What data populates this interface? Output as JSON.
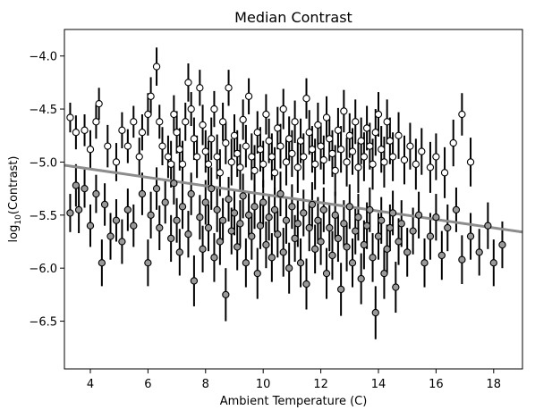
{
  "chart_data": {
    "type": "scatter",
    "title": "Median Contrast",
    "xlabel": "Ambient Temperature (C)",
    "ylabel_prefix": "log",
    "ylabel_sub": "10",
    "ylabel_suffix": "(Contrast)",
    "xlim": [
      3.1,
      19.0
    ],
    "ylim": [
      -6.95,
      -3.75
    ],
    "x_ticks": [
      {
        "value": 4,
        "label": "4"
      },
      {
        "value": 6,
        "label": "6"
      },
      {
        "value": 8,
        "label": "8"
      },
      {
        "value": 10,
        "label": "10"
      },
      {
        "value": 12,
        "label": "12"
      },
      {
        "value": 14,
        "label": "14"
      },
      {
        "value": 16,
        "label": "16"
      },
      {
        "value": 18,
        "label": "18"
      }
    ],
    "y_ticks": [
      {
        "value": -4.0,
        "label": "−4.0"
      },
      {
        "value": -4.5,
        "label": "−4.5"
      },
      {
        "value": -5.0,
        "label": "−5.0"
      },
      {
        "value": -5.5,
        "label": "−5.5"
      },
      {
        "value": -6.0,
        "label": "−6.0"
      },
      {
        "value": -6.5,
        "label": "−6.5"
      }
    ],
    "grid": false,
    "legend": "none",
    "fit_line": {
      "x": [
        3.1,
        19.0
      ],
      "y": [
        -5.03,
        -5.66
      ],
      "color": "#8c8c8c"
    },
    "marker_colors": {
      "light": "#ffffff",
      "dark": "#9a9a9a",
      "edge": "#000000",
      "errorbar": "#000000"
    },
    "series": [
      {
        "marker": "white-filled",
        "points": [
          [
            3.3,
            -4.58,
            0.14
          ],
          [
            3.5,
            -4.72,
            0.16
          ],
          [
            3.8,
            -4.7,
            0.15
          ],
          [
            4.0,
            -4.88,
            0.18
          ],
          [
            4.2,
            -4.62,
            0.16
          ],
          [
            4.3,
            -4.45,
            0.15
          ],
          [
            4.6,
            -4.85,
            0.2
          ],
          [
            4.9,
            -5.0,
            0.18
          ],
          [
            5.1,
            -4.7,
            0.17
          ],
          [
            5.3,
            -4.85,
            0.16
          ],
          [
            5.5,
            -4.62,
            0.15
          ],
          [
            5.7,
            -4.95,
            0.18
          ],
          [
            5.8,
            -4.72,
            0.17
          ],
          [
            6.0,
            -4.55,
            0.2
          ],
          [
            6.1,
            -4.38,
            0.18
          ],
          [
            6.3,
            -4.1,
            0.18
          ],
          [
            6.4,
            -4.62,
            0.16
          ],
          [
            6.5,
            -4.85,
            0.18
          ],
          [
            6.7,
            -4.95,
            0.2
          ],
          [
            6.8,
            -5.02,
            0.22
          ],
          [
            6.9,
            -4.55,
            0.18
          ],
          [
            7.0,
            -4.72,
            0.2
          ],
          [
            7.1,
            -4.88,
            0.2
          ],
          [
            7.2,
            -5.02,
            0.22
          ],
          [
            7.3,
            -4.62,
            0.18
          ],
          [
            7.4,
            -4.25,
            0.18
          ],
          [
            7.5,
            -4.5,
            0.16
          ],
          [
            7.6,
            -4.78,
            0.2
          ],
          [
            7.7,
            -4.95,
            0.2
          ],
          [
            7.8,
            -4.3,
            0.17
          ],
          [
            7.9,
            -4.65,
            0.19
          ],
          [
            8.0,
            -4.9,
            0.2
          ],
          [
            8.1,
            -5.02,
            0.22
          ],
          [
            8.2,
            -4.78,
            0.2
          ],
          [
            8.3,
            -4.5,
            0.17
          ],
          [
            8.4,
            -4.95,
            0.21
          ],
          [
            8.5,
            -5.1,
            0.22
          ],
          [
            8.6,
            -4.62,
            0.18
          ],
          [
            8.7,
            -4.82,
            0.2
          ],
          [
            8.8,
            -4.3,
            0.17
          ],
          [
            8.9,
            -5.0,
            0.22
          ],
          [
            9.0,
            -4.75,
            0.2
          ],
          [
            9.1,
            -4.92,
            0.22
          ],
          [
            9.2,
            -5.05,
            0.22
          ],
          [
            9.3,
            -4.6,
            0.19
          ],
          [
            9.4,
            -4.85,
            0.2
          ],
          [
            9.5,
            -4.38,
            0.17
          ],
          [
            9.6,
            -4.95,
            0.22
          ],
          [
            9.7,
            -5.08,
            0.24
          ],
          [
            9.8,
            -4.72,
            0.2
          ],
          [
            9.9,
            -4.88,
            0.21
          ],
          [
            10.0,
            -5.02,
            0.22
          ],
          [
            10.1,
            -4.55,
            0.19
          ],
          [
            10.2,
            -4.8,
            0.21
          ],
          [
            10.3,
            -4.95,
            0.22
          ],
          [
            10.4,
            -5.1,
            0.24
          ],
          [
            10.5,
            -4.68,
            0.2
          ],
          [
            10.6,
            -4.85,
            0.21
          ],
          [
            10.7,
            -4.5,
            0.19
          ],
          [
            10.8,
            -5.0,
            0.22
          ],
          [
            10.9,
            -4.78,
            0.21
          ],
          [
            11.0,
            -4.92,
            0.22
          ],
          [
            11.1,
            -4.62,
            0.2
          ],
          [
            11.2,
            -5.05,
            0.24
          ],
          [
            11.3,
            -4.8,
            0.21
          ],
          [
            11.4,
            -4.95,
            0.22
          ],
          [
            11.5,
            -4.4,
            0.19
          ],
          [
            11.6,
            -4.72,
            0.21
          ],
          [
            11.7,
            -4.88,
            0.22
          ],
          [
            11.8,
            -5.02,
            0.24
          ],
          [
            11.9,
            -4.65,
            0.21
          ],
          [
            12.0,
            -4.85,
            0.22
          ],
          [
            12.1,
            -4.98,
            0.23
          ],
          [
            12.2,
            -4.58,
            0.2
          ],
          [
            12.3,
            -4.78,
            0.21
          ],
          [
            12.4,
            -4.92,
            0.22
          ],
          [
            12.5,
            -5.08,
            0.24
          ],
          [
            12.6,
            -4.7,
            0.21
          ],
          [
            12.7,
            -4.88,
            0.22
          ],
          [
            12.8,
            -4.52,
            0.2
          ],
          [
            12.9,
            -5.0,
            0.23
          ],
          [
            13.0,
            -4.75,
            0.21
          ],
          [
            13.1,
            -4.9,
            0.22
          ],
          [
            13.2,
            -4.62,
            0.21
          ],
          [
            13.3,
            -5.05,
            0.24
          ],
          [
            13.4,
            -4.8,
            0.22
          ],
          [
            13.5,
            -4.95,
            0.23
          ],
          [
            13.6,
            -4.68,
            0.21
          ],
          [
            13.7,
            -4.85,
            0.22
          ],
          [
            13.8,
            -5.02,
            0.24
          ],
          [
            13.9,
            -4.72,
            0.22
          ],
          [
            14.0,
            -4.55,
            0.21
          ],
          [
            14.1,
            -4.88,
            0.22
          ],
          [
            14.2,
            -5.0,
            0.24
          ],
          [
            14.3,
            -4.62,
            0.21
          ],
          [
            14.4,
            -4.8,
            0.22
          ],
          [
            14.5,
            -4.95,
            0.23
          ],
          [
            14.7,
            -4.75,
            0.22
          ],
          [
            14.9,
            -4.98,
            0.23
          ],
          [
            15.1,
            -4.85,
            0.22
          ],
          [
            15.3,
            -5.02,
            0.24
          ],
          [
            15.5,
            -4.9,
            0.22
          ],
          [
            15.8,
            -5.05,
            0.24
          ],
          [
            16.0,
            -4.95,
            0.22
          ],
          [
            16.3,
            -5.1,
            0.24
          ],
          [
            16.6,
            -4.82,
            0.22
          ],
          [
            16.9,
            -4.55,
            0.2
          ],
          [
            17.2,
            -5.0,
            0.23
          ]
        ]
      },
      {
        "marker": "gray-filled",
        "points": [
          [
            3.3,
            -5.48,
            0.18
          ],
          [
            3.5,
            -5.22,
            0.2
          ],
          [
            3.6,
            -5.45,
            0.22
          ],
          [
            3.8,
            -5.25,
            0.18
          ],
          [
            4.0,
            -5.6,
            0.2
          ],
          [
            4.2,
            -5.3,
            0.18
          ],
          [
            4.4,
            -5.95,
            0.22
          ],
          [
            4.5,
            -5.4,
            0.2
          ],
          [
            4.7,
            -5.7,
            0.22
          ],
          [
            4.9,
            -5.55,
            0.2
          ],
          [
            5.1,
            -5.75,
            0.21
          ],
          [
            5.3,
            -5.45,
            0.2
          ],
          [
            5.5,
            -5.6,
            0.2
          ],
          [
            5.8,
            -5.3,
            0.2
          ],
          [
            6.0,
            -5.95,
            0.22
          ],
          [
            6.1,
            -5.5,
            0.22
          ],
          [
            6.3,
            -5.25,
            0.2
          ],
          [
            6.4,
            -5.62,
            0.21
          ],
          [
            6.6,
            -5.38,
            0.2
          ],
          [
            6.8,
            -5.72,
            0.22
          ],
          [
            6.9,
            -5.2,
            0.2
          ],
          [
            7.0,
            -5.55,
            0.21
          ],
          [
            7.1,
            -5.85,
            0.22
          ],
          [
            7.2,
            -5.42,
            0.21
          ],
          [
            7.4,
            -5.68,
            0.22
          ],
          [
            7.5,
            -5.3,
            0.2
          ],
          [
            7.6,
            -6.12,
            0.24
          ],
          [
            7.8,
            -5.52,
            0.21
          ],
          [
            7.9,
            -5.82,
            0.22
          ],
          [
            8.0,
            -5.38,
            0.21
          ],
          [
            8.1,
            -5.62,
            0.22
          ],
          [
            8.2,
            -5.25,
            0.2
          ],
          [
            8.3,
            -5.9,
            0.23
          ],
          [
            8.4,
            -5.45,
            0.21
          ],
          [
            8.5,
            -5.75,
            0.22
          ],
          [
            8.6,
            -5.55,
            0.21
          ],
          [
            8.7,
            -6.25,
            0.25
          ],
          [
            8.8,
            -5.35,
            0.21
          ],
          [
            8.9,
            -5.65,
            0.22
          ],
          [
            9.0,
            -5.48,
            0.21
          ],
          [
            9.1,
            -5.8,
            0.22
          ],
          [
            9.2,
            -5.58,
            0.22
          ],
          [
            9.3,
            -5.32,
            0.21
          ],
          [
            9.4,
            -5.95,
            0.23
          ],
          [
            9.5,
            -5.5,
            0.21
          ],
          [
            9.6,
            -5.7,
            0.22
          ],
          [
            9.7,
            -5.42,
            0.21
          ],
          [
            9.8,
            -6.05,
            0.24
          ],
          [
            9.9,
            -5.6,
            0.22
          ],
          [
            10.0,
            -5.38,
            0.21
          ],
          [
            10.1,
            -5.78,
            0.22
          ],
          [
            10.2,
            -5.52,
            0.22
          ],
          [
            10.3,
            -5.9,
            0.23
          ],
          [
            10.4,
            -5.45,
            0.21
          ],
          [
            10.5,
            -5.68,
            0.22
          ],
          [
            10.6,
            -5.3,
            0.21
          ],
          [
            10.7,
            -5.85,
            0.23
          ],
          [
            10.8,
            -5.55,
            0.22
          ],
          [
            10.9,
            -6.0,
            0.24
          ],
          [
            11.0,
            -5.42,
            0.21
          ],
          [
            11.1,
            -5.72,
            0.22
          ],
          [
            11.2,
            -5.58,
            0.22
          ],
          [
            11.3,
            -5.95,
            0.23
          ],
          [
            11.4,
            -5.48,
            0.22
          ],
          [
            11.5,
            -6.15,
            0.24
          ],
          [
            11.6,
            -5.62,
            0.22
          ],
          [
            11.7,
            -5.4,
            0.21
          ],
          [
            11.8,
            -5.82,
            0.23
          ],
          [
            11.9,
            -5.55,
            0.22
          ],
          [
            12.0,
            -5.75,
            0.22
          ],
          [
            12.1,
            -5.45,
            0.21
          ],
          [
            12.2,
            -6.05,
            0.24
          ],
          [
            12.3,
            -5.62,
            0.22
          ],
          [
            12.4,
            -5.88,
            0.23
          ],
          [
            12.5,
            -5.5,
            0.22
          ],
          [
            12.6,
            -5.72,
            0.22
          ],
          [
            12.7,
            -6.2,
            0.25
          ],
          [
            12.8,
            -5.58,
            0.22
          ],
          [
            12.9,
            -5.8,
            0.23
          ],
          [
            13.0,
            -5.42,
            0.21
          ],
          [
            13.1,
            -5.95,
            0.23
          ],
          [
            13.2,
            -5.65,
            0.22
          ],
          [
            13.3,
            -5.52,
            0.22
          ],
          [
            13.4,
            -6.1,
            0.24
          ],
          [
            13.5,
            -5.78,
            0.23
          ],
          [
            13.6,
            -5.6,
            0.22
          ],
          [
            13.7,
            -5.45,
            0.21
          ],
          [
            13.8,
            -5.9,
            0.23
          ],
          [
            13.9,
            -6.42,
            0.25
          ],
          [
            14.0,
            -5.7,
            0.22
          ],
          [
            14.1,
            -5.55,
            0.22
          ],
          [
            14.2,
            -6.05,
            0.24
          ],
          [
            14.3,
            -5.82,
            0.23
          ],
          [
            14.4,
            -5.62,
            0.22
          ],
          [
            14.5,
            -5.48,
            0.21
          ],
          [
            14.6,
            -6.18,
            0.24
          ],
          [
            14.7,
            -5.75,
            0.22
          ],
          [
            14.8,
            -5.58,
            0.22
          ],
          [
            15.0,
            -5.85,
            0.23
          ],
          [
            15.2,
            -5.65,
            0.22
          ],
          [
            15.4,
            -5.5,
            0.22
          ],
          [
            15.6,
            -5.95,
            0.23
          ],
          [
            15.8,
            -5.7,
            0.22
          ],
          [
            16.0,
            -5.52,
            0.22
          ],
          [
            16.2,
            -5.88,
            0.23
          ],
          [
            16.4,
            -5.62,
            0.22
          ],
          [
            16.7,
            -5.45,
            0.21
          ],
          [
            16.9,
            -5.92,
            0.23
          ],
          [
            17.2,
            -5.7,
            0.22
          ],
          [
            17.5,
            -5.85,
            0.22
          ],
          [
            17.8,
            -5.6,
            0.22
          ],
          [
            18.0,
            -5.95,
            0.22
          ],
          [
            18.3,
            -5.78,
            0.22
          ]
        ]
      }
    ]
  }
}
